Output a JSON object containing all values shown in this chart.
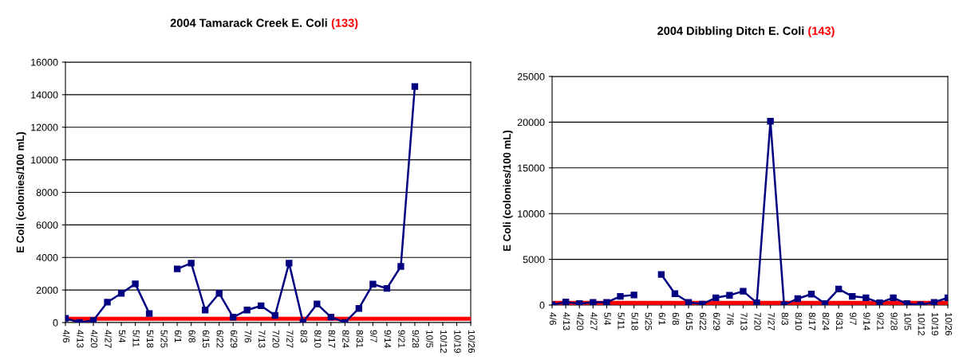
{
  "chart_data": [
    {
      "type": "line",
      "title": "2004 Tamarack Creek E. Coli",
      "subtitle": "(133)",
      "ylabel": "E Coli (colonies/100 mL)",
      "categories": [
        "4/6",
        "4/13",
        "4/20",
        "4/27",
        "5/4",
        "5/11",
        "5/18",
        "5/25",
        "6/1",
        "6/8",
        "6/15",
        "6/22",
        "6/29",
        "7/6",
        "7/13",
        "7/20",
        "7/27",
        "8/3",
        "8/10",
        "8/17",
        "8/24",
        "8/31",
        "9/7",
        "9/14",
        "9/21",
        "9/28",
        "10/5",
        "10/12",
        "10/19",
        "10/26"
      ],
      "series": [
        {
          "color": "#000080",
          "values": [
            260,
            10,
            130,
            1250,
            1800,
            2380,
            560,
            null,
            3300,
            3650,
            770,
            1800,
            330,
            770,
            1030,
            440,
            3650,
            20,
            1140,
            340,
            10,
            870,
            2360,
            2100,
            3450,
            14500,
            null,
            null,
            null,
            null
          ]
        }
      ],
      "ylim": [
        0,
        16000
      ],
      "yticks": [
        0,
        2000,
        4000,
        6000,
        8000,
        10000,
        12000,
        14000,
        16000
      ],
      "ref_lines": [
        {
          "axis": "y",
          "value": 235,
          "color": "#ff0000"
        }
      ],
      "grid": "y",
      "marker": "square",
      "line_style": "solid",
      "legend": false
    },
    {
      "type": "line",
      "title": "2004 Dibbling Ditch E. Coli",
      "subtitle": "(143)",
      "ylabel": "E Coli (colonies/100 mL)",
      "categories": [
        "4/6",
        "4/13",
        "4/20",
        "4/27",
        "5/4",
        "5/11",
        "5/18",
        "5/25",
        "6/1",
        "6/8",
        "6/15",
        "6/22",
        "6/29",
        "7/6",
        "7/13",
        "7/20",
        "7/27",
        "8/3",
        "8/10",
        "8/17",
        "8/24",
        "8/31",
        "9/7",
        "9/14",
        "9/21",
        "9/28",
        "10/5",
        "10/12",
        "10/19",
        "10/26"
      ],
      "series": [
        {
          "color": "#000080",
          "values": [
            20,
            330,
            150,
            300,
            300,
            950,
            1100,
            null,
            3350,
            1240,
            300,
            100,
            800,
            1070,
            1510,
            250,
            20100,
            20,
            700,
            1200,
            150,
            1750,
            950,
            800,
            250,
            800,
            150,
            30,
            300,
            800
          ]
        }
      ],
      "ylim": [
        0,
        25000
      ],
      "yticks": [
        0,
        5000,
        10000,
        15000,
        20000,
        25000
      ],
      "ref_lines": [
        {
          "axis": "y",
          "value": 235,
          "color": "#ff0000"
        }
      ],
      "grid": "y",
      "marker": "square",
      "line_style": "solid",
      "legend": false
    }
  ]
}
